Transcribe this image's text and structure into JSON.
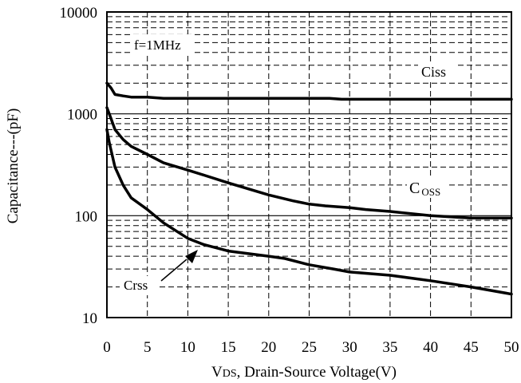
{
  "chart_data": {
    "type": "line",
    "xlabel_prefix": "V",
    "xlabel_sub": "DS",
    "xlabel_rest": ", Drain-Source Voltage(V)",
    "ylabel": "Capacitance---(pF)",
    "x_scale": "linear",
    "y_scale": "log",
    "xlim": [
      0,
      50
    ],
    "ylim": [
      10,
      10000
    ],
    "grid": true,
    "x_ticks": [
      0,
      5,
      10,
      15,
      20,
      25,
      30,
      35,
      40,
      45,
      50
    ],
    "x_tick_labels": [
      "0",
      "5",
      "10",
      "15",
      "20",
      "25",
      "30",
      "35",
      "40",
      "45",
      "50"
    ],
    "y_ticks": [
      10,
      100,
      1000,
      10000
    ],
    "y_tick_labels": [
      "10",
      "100",
      "1000",
      "10000"
    ],
    "annotations": {
      "freq": "f=1MHz",
      "ciss": "Ciss",
      "coss_c": "C",
      "coss_sub": "OSS",
      "crss": "Crss"
    },
    "series": [
      {
        "name": "Ciss",
        "x": [
          0,
          0.5,
          1,
          2,
          3,
          5,
          7,
          10,
          15,
          20,
          25,
          27.5,
          29,
          30,
          35,
          40,
          45,
          50
        ],
        "y": [
          2000,
          1800,
          1550,
          1500,
          1460,
          1460,
          1420,
          1420,
          1420,
          1420,
          1420,
          1420,
          1390,
          1390,
          1390,
          1390,
          1390,
          1390
        ]
      },
      {
        "name": "Coss",
        "x": [
          0,
          0.5,
          1,
          2,
          3,
          5,
          7,
          10,
          12,
          15,
          20,
          23,
          25,
          27,
          30,
          32,
          35,
          40,
          45,
          50
        ],
        "y": [
          1150,
          900,
          700,
          560,
          480,
          400,
          330,
          280,
          250,
          210,
          160,
          140,
          130,
          125,
          120,
          115,
          110,
          100,
          95,
          95
        ]
      },
      {
        "name": "Crss",
        "x": [
          0,
          0.3,
          1,
          2,
          3,
          5,
          7,
          10,
          12,
          15,
          20,
          22,
          25,
          28,
          30,
          35,
          40,
          45,
          50
        ],
        "y": [
          700,
          520,
          300,
          200,
          150,
          115,
          85,
          60,
          52,
          45,
          40,
          38,
          33,
          30,
          28,
          26,
          23,
          20,
          17
        ]
      }
    ]
  }
}
